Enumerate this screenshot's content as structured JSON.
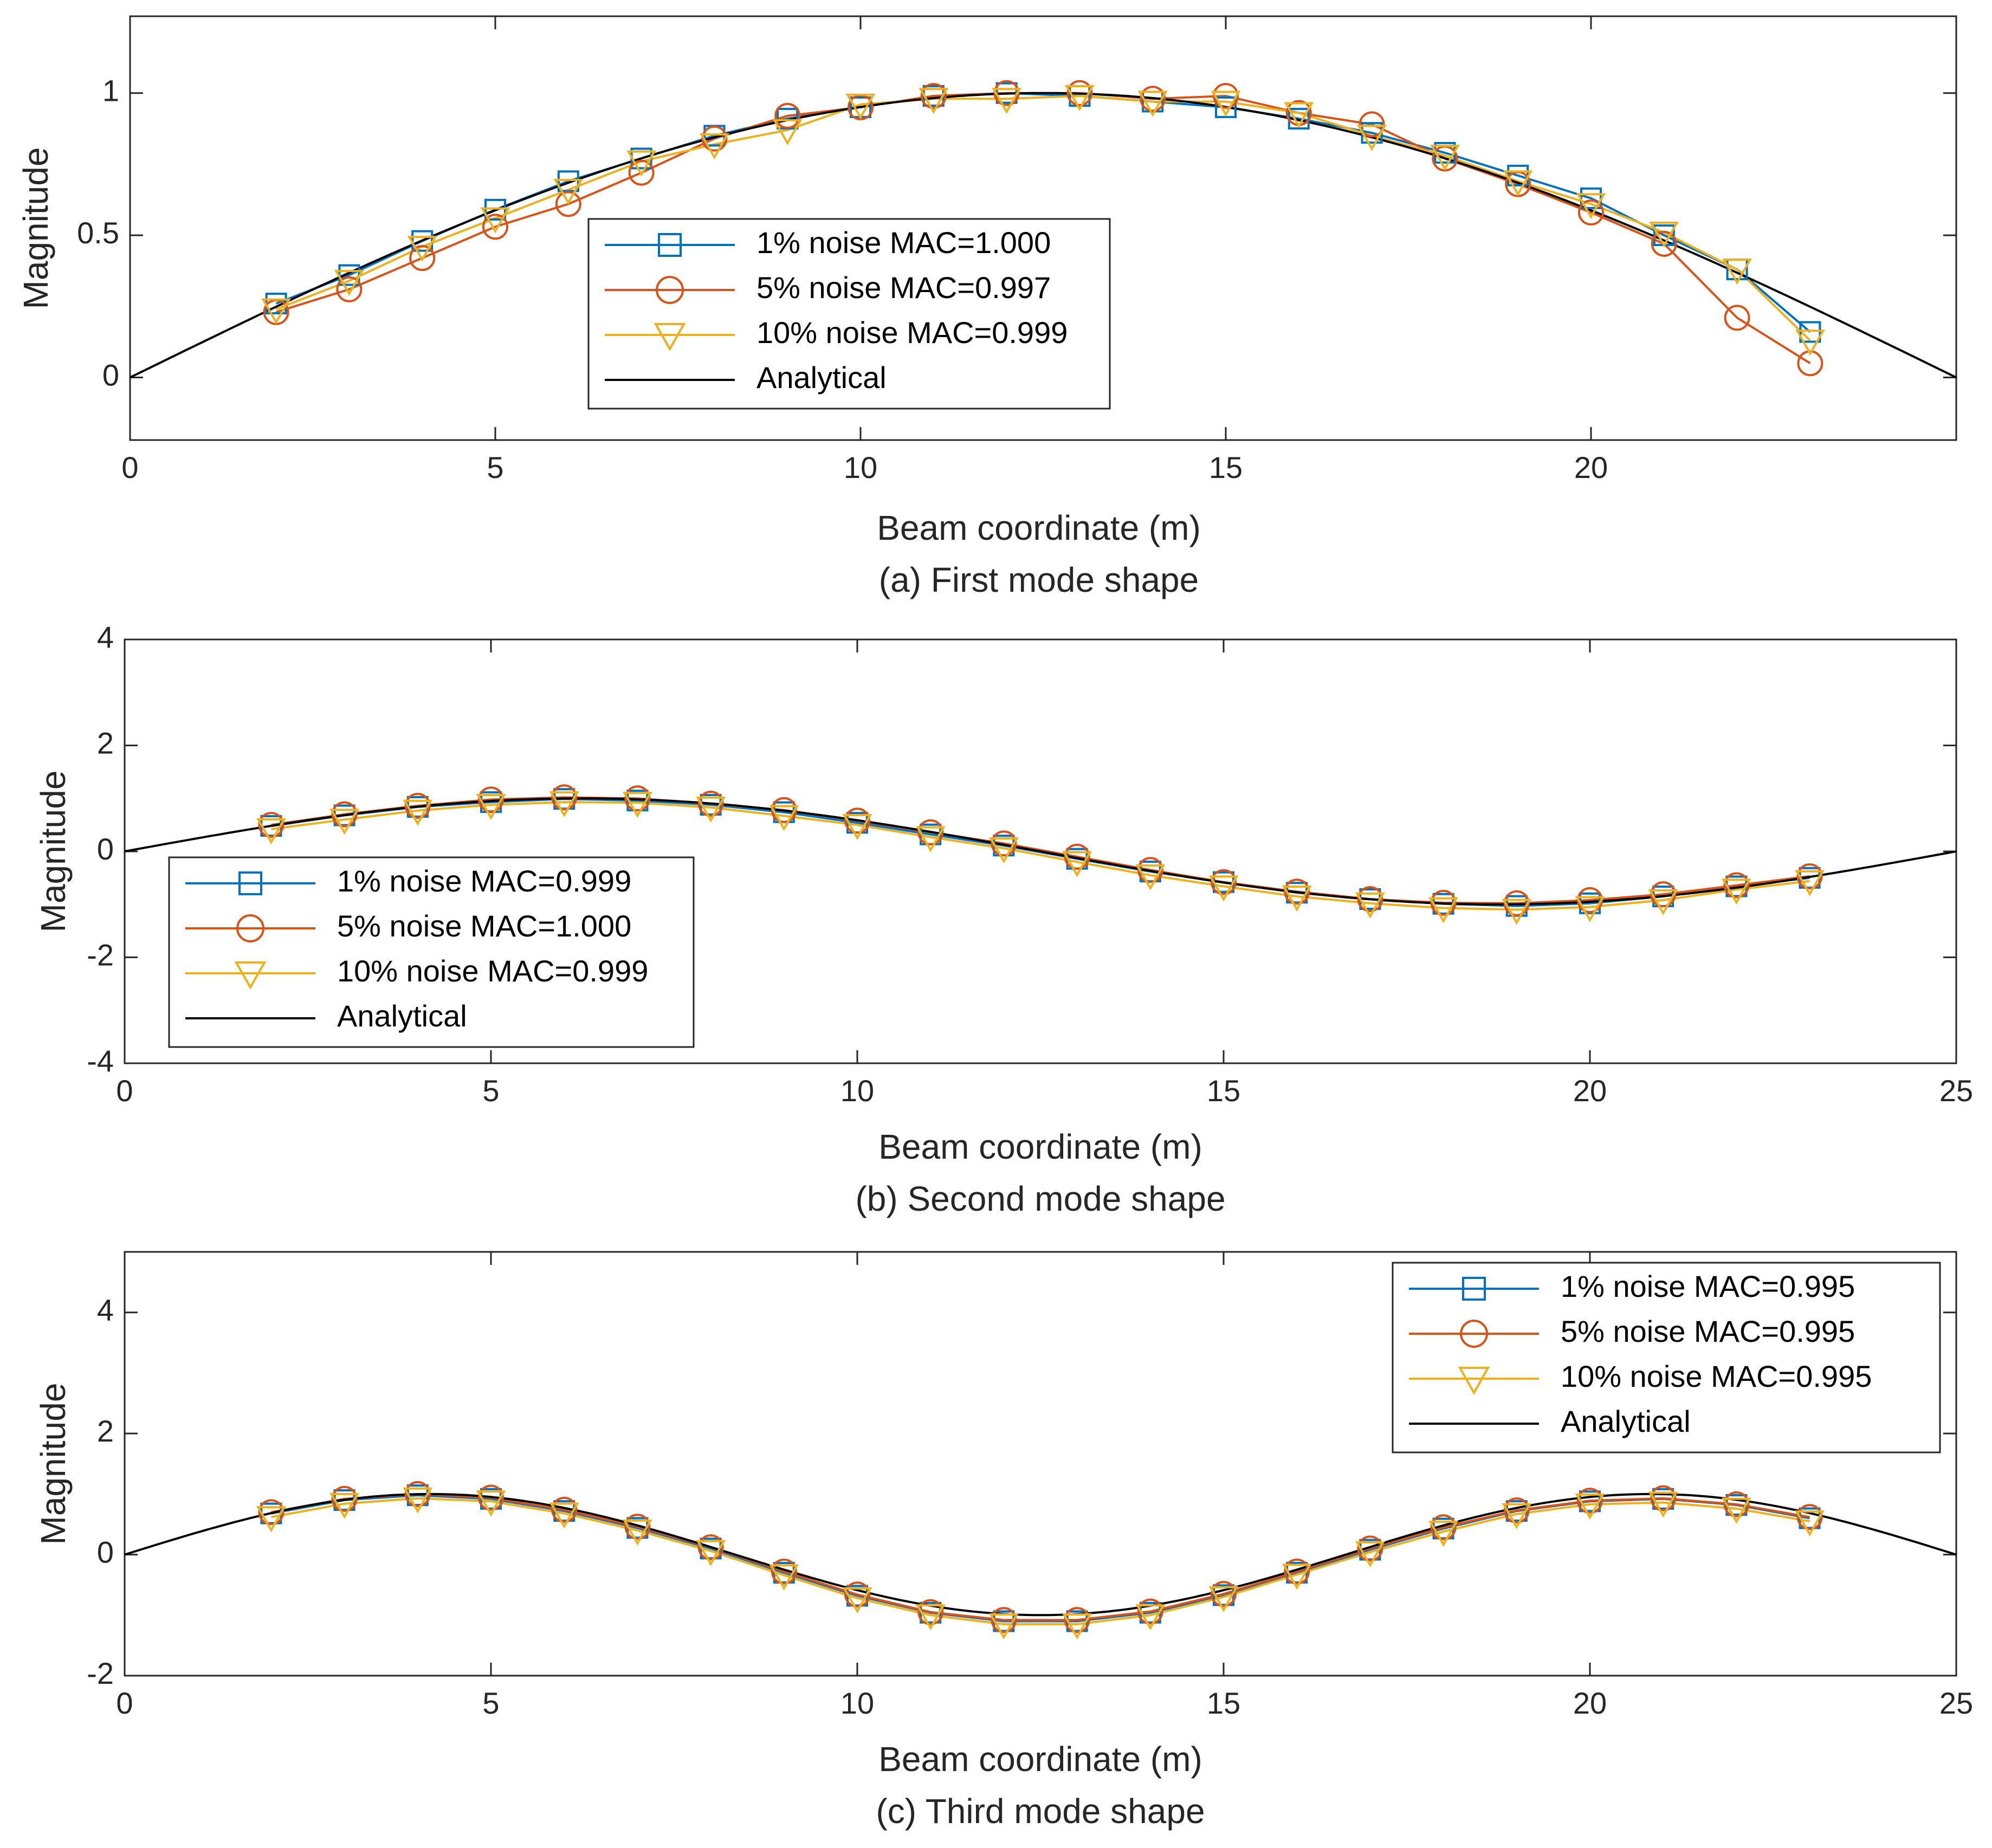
{
  "colors": {
    "noise1": "#0072BD",
    "noise5": "#D95319",
    "noise10": "#EDB120",
    "analytical": "#000000",
    "axis": "#262626"
  },
  "chart_data": [
    {
      "type": "line",
      "caption": "(a) First mode shape",
      "xlabel": "Beam coordinate (m)",
      "ylabel": "Magnitude",
      "xlim": [
        0,
        25
      ],
      "ylim": [
        -0.22,
        1.27
      ],
      "xticks": [
        0,
        5,
        10,
        15,
        20
      ],
      "yticks": [
        0,
        0.5,
        1
      ],
      "ytick_labels": [
        "0",
        "0.5",
        "1"
      ],
      "legend_position": "center",
      "analytical": {
        "name": "Analytical",
        "shape": "sin(pi*x/25)"
      },
      "x": [
        2,
        3,
        4,
        5,
        6,
        7,
        8,
        9,
        10,
        11,
        12,
        13,
        14,
        15,
        16,
        17,
        18,
        19,
        20,
        21,
        22,
        23
      ],
      "series": [
        {
          "name": "1% noise MAC=1.000",
          "marker": "square",
          "values": [
            0.26,
            0.36,
            0.48,
            0.59,
            0.69,
            0.77,
            0.85,
            0.91,
            0.95,
            0.99,
            1.0,
            0.99,
            0.97,
            0.95,
            0.91,
            0.86,
            0.79,
            0.71,
            0.63,
            0.5,
            0.38,
            0.16
          ]
        },
        {
          "name": "5% noise MAC=0.997",
          "marker": "circle",
          "values": [
            0.23,
            0.31,
            0.42,
            0.53,
            0.61,
            0.72,
            0.84,
            0.92,
            0.95,
            0.99,
            1.0,
            1.0,
            0.98,
            0.99,
            0.93,
            0.89,
            0.77,
            0.68,
            0.58,
            0.47,
            0.21,
            0.05
          ]
        },
        {
          "name": "10% noise MAC=0.999",
          "marker": "triangle-down",
          "values": [
            0.24,
            0.34,
            0.46,
            0.56,
            0.66,
            0.76,
            0.82,
            0.87,
            0.96,
            0.98,
            0.98,
            0.99,
            0.97,
            0.97,
            0.93,
            0.85,
            0.78,
            0.69,
            0.61,
            0.51,
            0.38,
            0.13
          ]
        }
      ]
    },
    {
      "type": "line",
      "caption": "(b) Second mode shape",
      "xlabel": "Beam coordinate (m)",
      "ylabel": "Magnitude",
      "xlim": [
        0,
        25
      ],
      "ylim": [
        -4,
        4
      ],
      "xticks": [
        0,
        5,
        10,
        15,
        20,
        25
      ],
      "yticks": [
        -4,
        -2,
        0,
        2,
        4
      ],
      "ytick_labels": [
        "-4",
        "-2",
        "0",
        "2",
        "4"
      ],
      "legend_position": "bottom-left",
      "analytical": {
        "name": "Analytical",
        "shape": "sin(2*pi*x/25)"
      },
      "x": [
        2,
        3,
        4,
        5,
        6,
        7,
        8,
        9,
        10,
        11,
        12,
        13,
        14,
        15,
        16,
        17,
        18,
        19,
        20,
        21,
        22,
        23
      ],
      "series": [
        {
          "name": "1% noise MAC=0.999",
          "marker": "square",
          "values": [
            0.48,
            0.68,
            0.84,
            0.93,
            0.99,
            0.96,
            0.88,
            0.74,
            0.54,
            0.32,
            0.11,
            -0.14,
            -0.38,
            -0.58,
            -0.78,
            -0.9,
            -0.99,
            -1.03,
            -0.98,
            -0.85,
            -0.66,
            -0.5
          ]
        },
        {
          "name": "5% noise MAC=1.000",
          "marker": "circle",
          "values": [
            0.5,
            0.7,
            0.86,
            0.98,
            1.02,
            1.0,
            0.9,
            0.78,
            0.58,
            0.36,
            0.15,
            -0.1,
            -0.35,
            -0.58,
            -0.76,
            -0.9,
            -0.97,
            -0.98,
            -0.92,
            -0.81,
            -0.64,
            -0.47
          ]
        },
        {
          "name": "10% noise MAC=0.999",
          "marker": "triangle-down",
          "values": [
            0.42,
            0.6,
            0.77,
            0.88,
            0.93,
            0.92,
            0.83,
            0.67,
            0.5,
            0.27,
            0.06,
            -0.2,
            -0.45,
            -0.66,
            -0.85,
            -0.98,
            -1.07,
            -1.1,
            -1.05,
            -0.92,
            -0.72,
            -0.56
          ]
        }
      ]
    },
    {
      "type": "line",
      "caption": "(c) Third mode shape",
      "xlabel": "Beam coordinate (m)",
      "ylabel": "Magnitude",
      "xlim": [
        0,
        25
      ],
      "ylim": [
        -2,
        5
      ],
      "xticks": [
        0,
        5,
        10,
        15,
        20,
        25
      ],
      "yticks": [
        -2,
        0,
        2,
        4
      ],
      "ytick_labels": [
        "-2",
        "0",
        "2",
        "4"
      ],
      "legend_position": "top-right",
      "analytical": {
        "name": "Analytical",
        "shape": "sin(3*pi*x/25)"
      },
      "x": [
        2,
        3,
        4,
        5,
        6,
        7,
        8,
        9,
        10,
        11,
        12,
        13,
        14,
        15,
        16,
        17,
        18,
        19,
        20,
        21,
        22,
        23
      ],
      "series": [
        {
          "name": "1% noise MAC=0.995",
          "marker": "square",
          "values": [
            0.68,
            0.9,
            0.98,
            0.92,
            0.72,
            0.44,
            0.1,
            -0.3,
            -0.68,
            -0.96,
            -1.1,
            -1.1,
            -0.96,
            -0.67,
            -0.3,
            0.08,
            0.43,
            0.72,
            0.88,
            0.92,
            0.82,
            0.6
          ]
        },
        {
          "name": "5% noise MAC=0.995",
          "marker": "circle",
          "values": [
            0.7,
            0.92,
            1.0,
            0.94,
            0.74,
            0.46,
            0.12,
            -0.28,
            -0.66,
            -0.95,
            -1.08,
            -1.08,
            -0.94,
            -0.65,
            -0.28,
            0.1,
            0.45,
            0.73,
            0.89,
            0.93,
            0.83,
            0.62
          ]
        },
        {
          "name": "10% noise MAC=0.995",
          "marker": "triangle-down",
          "values": [
            0.62,
            0.84,
            0.93,
            0.88,
            0.68,
            0.4,
            0.06,
            -0.34,
            -0.72,
            -1.0,
            -1.15,
            -1.15,
            -1.0,
            -0.7,
            -0.33,
            0.04,
            0.38,
            0.67,
            0.83,
            0.86,
            0.76,
            0.55
          ]
        }
      ]
    }
  ]
}
